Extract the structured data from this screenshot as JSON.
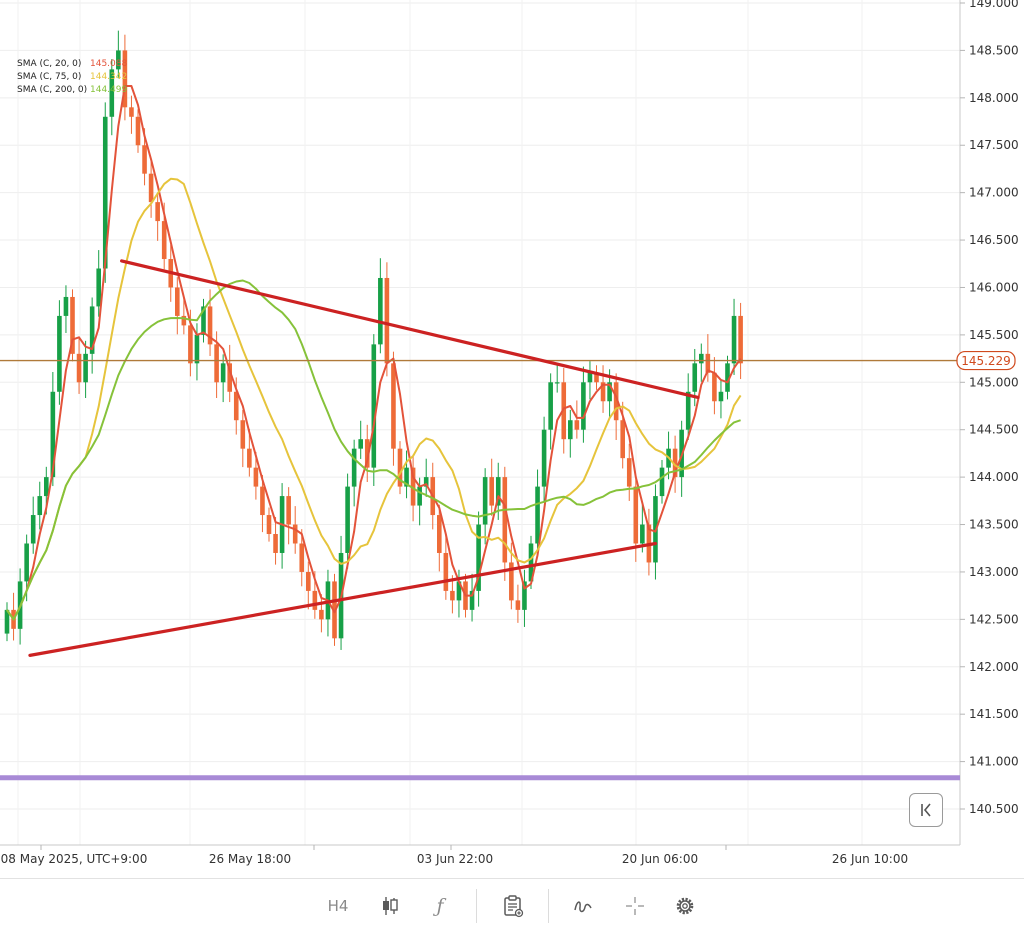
{
  "chart_data": {
    "type": "candlestick",
    "timeframe": "H4",
    "timezone_label": "UTC+9:00",
    "x_labels": [
      "08 May 2025, UTC+9:00",
      "26 May 18:00",
      "03 Jun 22:00",
      "20 Jun 06:00",
      "26 Jun 10:00"
    ],
    "y_ticks": [
      "149.000",
      "148.500",
      "148.000",
      "147.500",
      "147.000",
      "146.500",
      "146.000",
      "145.500",
      "145.000",
      "144.500",
      "144.000",
      "143.500",
      "143.000",
      "142.500",
      "142.000",
      "141.500",
      "141.000",
      "140.500"
    ],
    "ylim": [
      140.1,
      149.1
    ],
    "current_price": "145.229",
    "current_price_value": 145.229,
    "support_level": 140.83,
    "legend": [
      {
        "label": "SMA (C, 20, 0)",
        "value": "145.088",
        "color": "#e3533a"
      },
      {
        "label": "SMA (C, 75, 0)",
        "value": "144.342",
        "color": "#e6c43c"
      },
      {
        "label": "SMA (C, 200, 0)",
        "value": "144.499",
        "color": "#86c23a"
      }
    ],
    "trendlines": [
      {
        "name": "upper-trendline",
        "points": [
          [
            17.5,
            146.28
          ],
          [
            105.5,
            144.84
          ]
        ]
      },
      {
        "name": "lower-trendline",
        "points": [
          [
            3.5,
            142.12
          ],
          [
            99.0,
            143.3
          ]
        ]
      }
    ],
    "closes": [
      142.6,
      142.4,
      142.9,
      143.3,
      143.6,
      143.8,
      144.0,
      144.9,
      145.7,
      145.9,
      145.3,
      145.0,
      145.3,
      145.8,
      146.2,
      147.8,
      148.3,
      148.5,
      147.9,
      147.8,
      147.5,
      147.2,
      146.9,
      146.7,
      146.3,
      146.0,
      145.7,
      145.6,
      145.2,
      145.5,
      145.8,
      145.4,
      145.0,
      145.2,
      144.9,
      144.6,
      144.3,
      144.1,
      143.9,
      143.6,
      143.4,
      143.2,
      143.8,
      143.5,
      143.3,
      143.0,
      142.8,
      142.6,
      142.5,
      142.9,
      142.3,
      143.2,
      143.9,
      144.3,
      144.4,
      144.1,
      145.4,
      146.1,
      145.2,
      144.3,
      143.9,
      144.1,
      143.7,
      143.9,
      144.0,
      143.6,
      143.2,
      142.8,
      142.7,
      142.9,
      142.6,
      142.8,
      143.5,
      144.0,
      143.7,
      144.0,
      143.1,
      142.7,
      142.6,
      142.9,
      143.3,
      143.9,
      144.5,
      145.0,
      145.0,
      144.4,
      144.6,
      144.5,
      145.0,
      145.1,
      145.0,
      144.8,
      145.0,
      144.6,
      144.2,
      143.9,
      143.3,
      143.5,
      143.1,
      143.8,
      144.1,
      144.3,
      144.0,
      144.5,
      144.9,
      145.2,
      145.3,
      145.1,
      144.8,
      144.9,
      145.2,
      145.7,
      145.2
    ]
  },
  "toolbar": {
    "timeframe_label": "H4",
    "function_glyph": "ƒ"
  }
}
